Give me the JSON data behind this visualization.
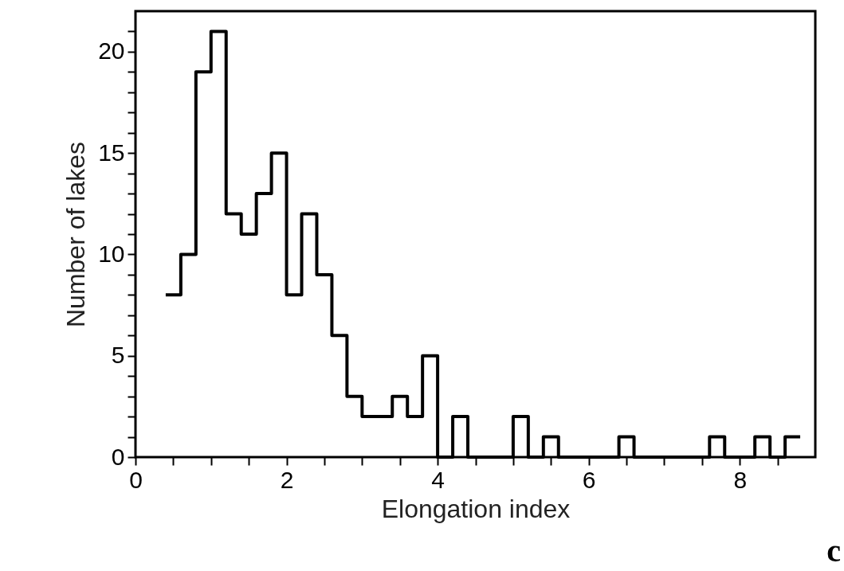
{
  "chart_data": {
    "type": "histogram",
    "xlabel": "Elongation index",
    "ylabel": "Number of lakes",
    "bins": [
      0.4,
      0.6,
      0.8,
      1.0,
      1.2,
      1.4,
      1.6,
      1.8,
      2.0,
      2.2,
      2.4,
      2.6,
      2.8,
      3.0,
      3.2,
      3.4,
      3.6,
      3.8,
      4.0,
      4.2,
      4.4,
      4.6,
      4.8,
      5.0,
      5.2,
      5.4,
      5.6,
      5.8,
      6.0,
      6.2,
      6.4,
      6.6,
      6.8,
      7.0,
      7.2,
      7.4,
      7.6,
      7.8,
      8.0,
      8.2,
      8.4,
      8.6,
      8.8
    ],
    "values": [
      8,
      10,
      19,
      21,
      12,
      11,
      13,
      15,
      8,
      12,
      9,
      6,
      3,
      2,
      2,
      3,
      2,
      5,
      0,
      2,
      0,
      0,
      0,
      2,
      0,
      1,
      0,
      0,
      0,
      0,
      1,
      0,
      0,
      0,
      0,
      0,
      1,
      0,
      0,
      1,
      0,
      1
    ],
    "color": "#000000",
    "xlim": [
      0,
      9
    ],
    "xticks": [
      0,
      {
        "value": 0.5,
        "label": null
      },
      {
        "value": 1,
        "label": null
      },
      {
        "value": 1.5,
        "label": null
      },
      2,
      {
        "value": 2.5,
        "label": null
      },
      {
        "value": 3,
        "label": null
      },
      {
        "value": 3.5,
        "label": null
      },
      4,
      {
        "value": 4.5,
        "label": null
      },
      {
        "value": 5,
        "label": null
      },
      {
        "value": 5.5,
        "label": null
      },
      6,
      {
        "value": 6.5,
        "label": null
      },
      {
        "value": 7,
        "label": null
      },
      {
        "value": 7.5,
        "label": null
      },
      8,
      {
        "value": 8.5,
        "label": null
      }
    ],
    "ylim": [
      0,
      22
    ],
    "yticks": [
      0,
      {
        "value": 1,
        "label": null
      },
      {
        "value": 2,
        "label": null
      },
      {
        "value": 3,
        "label": null
      },
      {
        "value": 4,
        "label": null
      },
      5,
      {
        "value": 6,
        "label": null
      },
      {
        "value": 7,
        "label": null
      },
      {
        "value": 8,
        "label": null
      },
      {
        "value": 9,
        "label": null
      },
      10,
      {
        "value": 11,
        "label": null
      },
      {
        "value": 12,
        "label": null
      },
      {
        "value": 13,
        "label": null
      },
      {
        "value": 14,
        "label": null
      },
      15,
      {
        "value": 16,
        "label": null
      },
      {
        "value": 17,
        "label": null
      },
      {
        "value": 18,
        "label": null
      },
      {
        "value": 19,
        "label": null
      },
      20,
      {
        "value": 21,
        "label": null
      }
    ],
    "grid": false,
    "annotations": [
      "c"
    ]
  }
}
